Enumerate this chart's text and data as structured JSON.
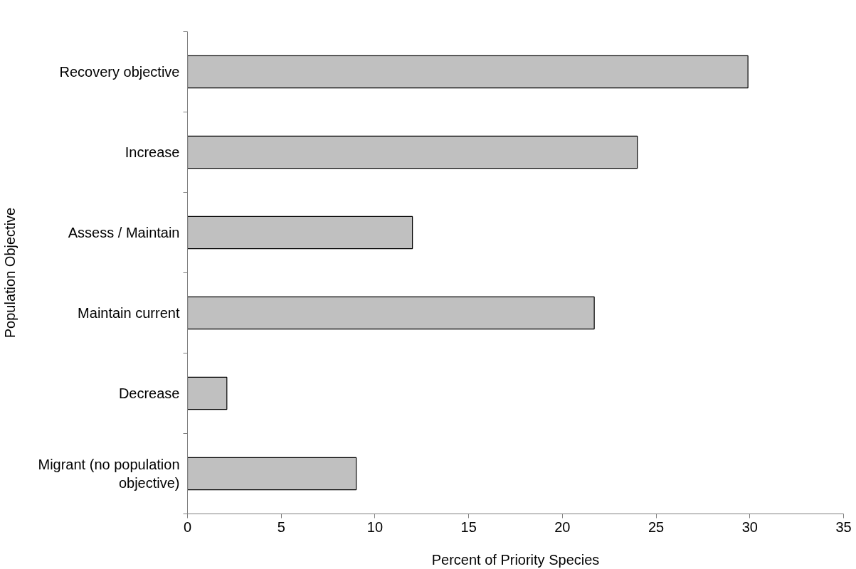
{
  "chart_data": {
    "type": "bar",
    "orientation": "horizontal",
    "xlabel": "Percent of Priority Species",
    "ylabel": "Population Objective",
    "categories": [
      "Recovery objective",
      "Increase",
      "Assess / Maintain",
      "Maintain current",
      "Decrease",
      "Migrant (no population objective)"
    ],
    "values": [
      29.9,
      24.0,
      12.0,
      21.7,
      2.1,
      9.0
    ],
    "color": "#c0c0c0",
    "xlim": [
      0,
      35
    ],
    "xticks": [
      0,
      5,
      10,
      15,
      20,
      25,
      30,
      35
    ],
    "grid": false
  }
}
